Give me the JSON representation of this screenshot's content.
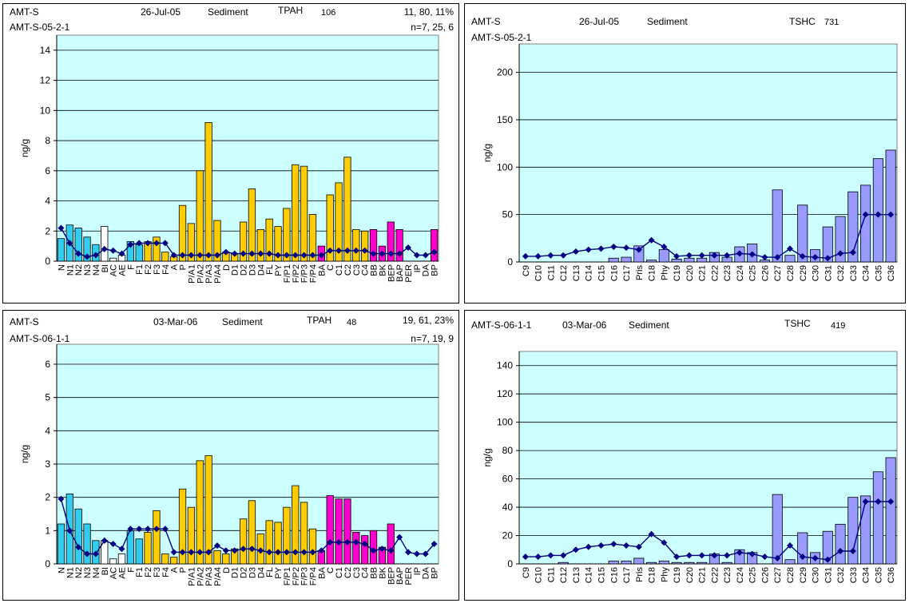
{
  "colors": {
    "plot_bg": "#ccffff",
    "blue": "#33ccee",
    "white": "#ffffff",
    "gold": "#ffcc00",
    "magenta": "#ff00cc",
    "lavender": "#9999ff",
    "line": "#000080"
  },
  "panels": [
    {
      "header": {
        "site": "AMT-S",
        "date": "26-Jul-05",
        "matrix": "Sediment",
        "metric": "TPAH",
        "metric_value": "106",
        "ratio": "11, 80, 11%",
        "sample": "AMT-S-05-2-1",
        "n": "n=7, 25, 6"
      },
      "chart_data": {
        "type": "bar",
        "ylabel": "ng/g",
        "ylim": [
          0,
          15
        ],
        "yticks": [
          0,
          2,
          4,
          6,
          8,
          10,
          12,
          14
        ],
        "categories": [
          "N",
          "N1",
          "N2",
          "N3",
          "N4",
          "BI",
          "AC",
          "AE",
          "F",
          "F1",
          "F2",
          "F3",
          "F4",
          "A",
          "P",
          "P/A1",
          "P/A2",
          "P/A3",
          "P/A4",
          "D",
          "D1",
          "D2",
          "D3",
          "D4",
          "FL",
          "PY",
          "F/P1",
          "F/P2",
          "F/P3",
          "F/P4",
          "BA",
          "C",
          "C1",
          "C2",
          "C3",
          "C4",
          "BB",
          "BK",
          "BEP",
          "BAP",
          "PER",
          "IP",
          "DA",
          "BP"
        ],
        "values": [
          1.5,
          2.4,
          2.2,
          1.6,
          1.1,
          2.3,
          0.2,
          0.4,
          1.3,
          1.1,
          1.3,
          1.6,
          0.6,
          0.3,
          3.7,
          2.5,
          6.0,
          9.2,
          2.7,
          0.6,
          0.5,
          2.6,
          4.8,
          2.1,
          2.8,
          2.3,
          3.5,
          6.4,
          6.3,
          3.1,
          1.0,
          4.4,
          5.2,
          6.9,
          2.1,
          2.0,
          2.1,
          1.0,
          2.6,
          2.1,
          0,
          0,
          0,
          2.1
        ],
        "groups": [
          "blue",
          "blue",
          "blue",
          "blue",
          "blue",
          "white",
          "white",
          "white",
          "blue",
          "blue",
          "gold",
          "gold",
          "gold",
          "gold",
          "gold",
          "gold",
          "gold",
          "gold",
          "gold",
          "gold",
          "gold",
          "gold",
          "gold",
          "gold",
          "gold",
          "gold",
          "gold",
          "gold",
          "gold",
          "gold",
          "magenta",
          "gold",
          "gold",
          "gold",
          "gold",
          "gold",
          "magenta",
          "magenta",
          "magenta",
          "magenta",
          "magenta",
          "magenta",
          "magenta",
          "magenta"
        ],
        "line": [
          2.2,
          1.2,
          0.5,
          0.3,
          0.4,
          0.8,
          0.7,
          0.5,
          1.1,
          1.2,
          1.2,
          1.2,
          1.2,
          0.4,
          0.4,
          0.4,
          0.4,
          0.4,
          0.4,
          0.6,
          0.5,
          0.5,
          0.5,
          0.5,
          0.5,
          0.4,
          0.4,
          0.4,
          0.4,
          0.4,
          0.4,
          0.7,
          0.7,
          0.7,
          0.7,
          0.7,
          0.5,
          0.5,
          0.5,
          0.5,
          0.9,
          0.4,
          0.4,
          0.6
        ]
      }
    },
    {
      "header": {
        "site": "AMT-S",
        "date": "26-Jul-05",
        "matrix": "Sediment",
        "metric": "TSHC",
        "metric_value": "731",
        "sample": "AMT-S-05-2-1"
      },
      "chart_data": {
        "type": "bar",
        "ylabel": "ng/g",
        "ylim": [
          0,
          230
        ],
        "yticks": [
          0,
          50,
          100,
          150,
          200
        ],
        "categories": [
          "C9",
          "C10",
          "C11",
          "C12",
          "C13",
          "C14",
          "C15",
          "C16",
          "C17",
          "Pris",
          "C18",
          "Phy",
          "C19",
          "C20",
          "C21",
          "C22",
          "C23",
          "C24",
          "C25",
          "C26",
          "C27",
          "C28",
          "C29",
          "C30",
          "C31",
          "C32",
          "C33",
          "C34",
          "C35",
          "C36"
        ],
        "values": [
          0,
          0,
          0,
          0,
          0,
          0,
          0,
          4,
          5,
          17,
          2,
          13,
          3,
          4,
          4,
          10,
          5,
          16,
          19,
          2,
          76,
          7,
          60,
          13,
          37,
          48,
          74,
          81,
          109,
          118
        ],
        "groups": [
          "lavender",
          "lavender",
          "lavender",
          "lavender",
          "lavender",
          "lavender",
          "lavender",
          "lavender",
          "lavender",
          "lavender",
          "lavender",
          "lavender",
          "lavender",
          "lavender",
          "lavender",
          "lavender",
          "lavender",
          "lavender",
          "lavender",
          "lavender",
          "lavender",
          "lavender",
          "lavender",
          "lavender",
          "lavender",
          "lavender",
          "lavender",
          "lavender",
          "lavender",
          "lavender"
        ],
        "line": [
          6,
          6,
          7,
          7,
          11,
          13,
          14,
          16,
          15,
          13,
          23,
          16,
          6,
          7,
          7,
          7,
          7,
          9,
          8,
          5,
          5,
          14,
          6,
          5,
          4,
          9,
          10,
          50,
          50,
          50
        ]
      }
    },
    {
      "header": {
        "site": "AMT-S",
        "date": "03-Mar-06",
        "matrix": "Sediment",
        "metric": "TPAH",
        "metric_value": "48",
        "ratio": "19, 61, 23%",
        "sample": "AMT-S-06-1-1",
        "n": "n=7, 19, 9"
      },
      "chart_data": {
        "type": "bar",
        "ylabel": "ng/g",
        "ylim": [
          0,
          6.6
        ],
        "yticks": [
          0,
          1,
          2,
          3,
          4,
          5,
          6
        ],
        "categories": [
          "N",
          "N1",
          "N2",
          "N3",
          "N4",
          "BI",
          "AC",
          "AE",
          "F",
          "F1",
          "F2",
          "F3",
          "F4",
          "A",
          "P",
          "P/A1",
          "P/A2",
          "P/A3",
          "P/A4",
          "D",
          "D1",
          "D2",
          "D3",
          "D4",
          "FL",
          "PY",
          "F/P1",
          "F/P2",
          "F/P3",
          "F/P4",
          "BA",
          "C",
          "C1",
          "C2",
          "C3",
          "C4",
          "BB",
          "BK",
          "BEP",
          "BAP",
          "PER",
          "IP",
          "DA",
          "BP"
        ],
        "values": [
          1.2,
          2.1,
          1.65,
          1.2,
          0.7,
          0.7,
          0.15,
          0.3,
          1.0,
          0.75,
          0.95,
          1.6,
          0.3,
          0.2,
          2.25,
          1.7,
          3.1,
          3.25,
          0.4,
          0.3,
          0.45,
          1.35,
          1.9,
          0.9,
          1.3,
          1.25,
          1.7,
          2.35,
          1.85,
          1.05,
          0.4,
          2.05,
          1.95,
          1.95,
          0.95,
          0.85,
          1.0,
          0.5,
          1.2,
          0,
          0,
          0,
          0,
          0
        ],
        "groups": [
          "blue",
          "blue",
          "blue",
          "blue",
          "blue",
          "white",
          "white",
          "white",
          "blue",
          "blue",
          "gold",
          "gold",
          "gold",
          "gold",
          "gold",
          "gold",
          "gold",
          "gold",
          "gold",
          "gold",
          "gold",
          "gold",
          "gold",
          "gold",
          "gold",
          "gold",
          "gold",
          "gold",
          "gold",
          "gold",
          "magenta",
          "magenta",
          "magenta",
          "magenta",
          "magenta",
          "magenta",
          "magenta",
          "magenta",
          "magenta",
          "magenta",
          "magenta",
          "magenta",
          "magenta",
          "magenta"
        ],
        "line": [
          1.95,
          1.0,
          0.5,
          0.3,
          0.3,
          0.7,
          0.6,
          0.45,
          1.05,
          1.05,
          1.05,
          1.05,
          1.05,
          0.35,
          0.35,
          0.35,
          0.35,
          0.35,
          0.55,
          0.4,
          0.4,
          0.45,
          0.45,
          0.4,
          0.35,
          0.35,
          0.35,
          0.35,
          0.35,
          0.35,
          0.4,
          0.65,
          0.65,
          0.65,
          0.65,
          0.6,
          0.4,
          0.45,
          0.4,
          0.8,
          0.35,
          0.3,
          0.3,
          0.6
        ]
      }
    },
    {
      "header": {
        "site": "AMT-S-06-1-1",
        "date": "03-Mar-06",
        "matrix": "Sediment",
        "metric": "TSHC",
        "metric_value": "419"
      },
      "chart_data": {
        "type": "bar",
        "ylabel": "ng/g",
        "ylim": [
          0,
          150
        ],
        "yticks": [
          0,
          20,
          40,
          60,
          80,
          100,
          120,
          140
        ],
        "categories": [
          "C9",
          "C10",
          "C11",
          "C12",
          "C13",
          "C14",
          "C15",
          "C16",
          "C17",
          "Pris",
          "C18",
          "Phy",
          "C19",
          "C20",
          "C21",
          "C22",
          "C23",
          "C24",
          "C25",
          "C26",
          "C27",
          "C28",
          "C29",
          "C30",
          "C31",
          "C32",
          "C33",
          "C34",
          "C35",
          "C36"
        ],
        "values": [
          0,
          0,
          0,
          1,
          0,
          0,
          0,
          2,
          2,
          4,
          1,
          2,
          1,
          1,
          1,
          7,
          1,
          10,
          8,
          0,
          49,
          3,
          22,
          8,
          23,
          28,
          47,
          48,
          65,
          75
        ],
        "groups": [
          "lavender",
          "lavender",
          "lavender",
          "lavender",
          "lavender",
          "lavender",
          "lavender",
          "lavender",
          "lavender",
          "lavender",
          "lavender",
          "lavender",
          "lavender",
          "lavender",
          "lavender",
          "lavender",
          "lavender",
          "lavender",
          "lavender",
          "lavender",
          "lavender",
          "lavender",
          "lavender",
          "lavender",
          "lavender",
          "lavender",
          "lavender",
          "lavender",
          "lavender",
          "lavender"
        ],
        "line": [
          5,
          5,
          6,
          6,
          10,
          12,
          13,
          14,
          13,
          12,
          21,
          15,
          5,
          6,
          6,
          6,
          6,
          8,
          7,
          5,
          4,
          13,
          5,
          4,
          3,
          9,
          9,
          44,
          44,
          44
        ]
      }
    }
  ]
}
